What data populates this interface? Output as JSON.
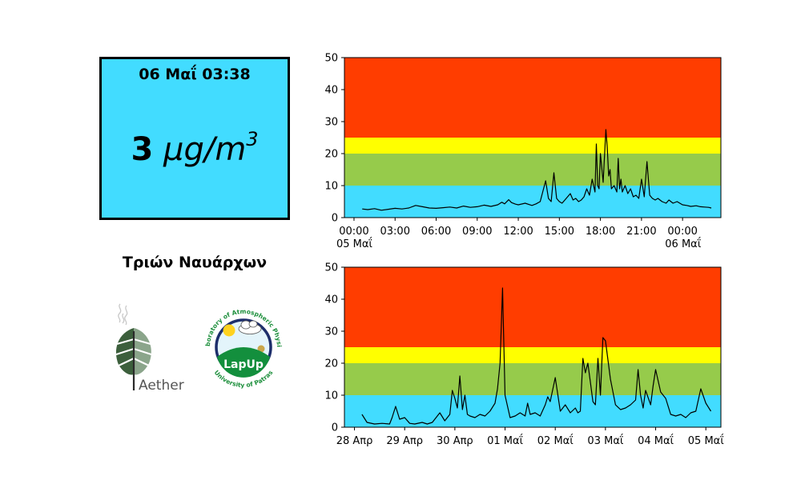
{
  "reading": {
    "time": "06 Μαΐ 03:38",
    "value": "3",
    "unit_base": "μg/m",
    "unit_exp": "3",
    "background": "#42dcff"
  },
  "station": {
    "name": "Τριών Ναυάρχων"
  },
  "logos": {
    "aether": {
      "name": "aether-logo",
      "text": "Aether"
    },
    "lapup": {
      "name": "lapup-logo",
      "badge": "LapUp",
      "ring_top": "Laboratory of Atmospheric Physics",
      "ring_bottom": "University of Patras"
    }
  },
  "colors": {
    "band_good": "#42dcff",
    "band_fair": "#96cb4b",
    "band_moderate": "#ffff00",
    "band_poor": "#ff3d00",
    "line": "#000000"
  },
  "chart_data": [
    {
      "type": "line",
      "ylim": [
        0,
        50
      ],
      "yticks": [
        0,
        10,
        20,
        30,
        40,
        50
      ],
      "bands": [
        {
          "from": 0,
          "to": 10,
          "color": "#42dcff"
        },
        {
          "from": 10,
          "to": 20,
          "color": "#96cb4b"
        },
        {
          "from": 20,
          "to": 25,
          "color": "#ffff00"
        },
        {
          "from": 25,
          "to": 50,
          "color": "#ff3d00"
        }
      ],
      "xlim": [
        -0.7,
        26.8
      ],
      "xticks": [
        {
          "at": 0,
          "label": "00:00",
          "sub": "05 Μαΐ"
        },
        {
          "at": 3,
          "label": "03:00"
        },
        {
          "at": 6,
          "label": "06:00"
        },
        {
          "at": 9,
          "label": "09:00"
        },
        {
          "at": 12,
          "label": "12:00"
        },
        {
          "at": 15,
          "label": "15:00"
        },
        {
          "at": 18,
          "label": "18:00"
        },
        {
          "at": 21,
          "label": "21:00"
        },
        {
          "at": 24,
          "label": "00:00",
          "sub": "06 Μαΐ"
        }
      ],
      "x": [
        0.6,
        1.0,
        1.5,
        2.0,
        2.5,
        3.0,
        3.5,
        4.0,
        4.5,
        5.0,
        5.5,
        6.0,
        6.5,
        7.0,
        7.5,
        8.0,
        8.5,
        9.0,
        9.5,
        10.0,
        10.5,
        10.8,
        11.0,
        11.3,
        11.5,
        11.8,
        12.0,
        12.5,
        13.0,
        13.3,
        13.6,
        14.0,
        14.2,
        14.4,
        14.6,
        14.8,
        15.0,
        15.2,
        15.5,
        15.8,
        16.0,
        16.2,
        16.4,
        16.6,
        16.8,
        17.0,
        17.2,
        17.4,
        17.6,
        17.7,
        17.8,
        17.9,
        18.0,
        18.2,
        18.4,
        18.5,
        18.6,
        18.7,
        18.8,
        19.0,
        19.2,
        19.3,
        19.4,
        19.5,
        19.6,
        19.8,
        20.0,
        20.2,
        20.4,
        20.6,
        20.8,
        21.0,
        21.2,
        21.4,
        21.6,
        21.8,
        22.0,
        22.2,
        22.5,
        22.8,
        23.0,
        23.3,
        23.6,
        24.0,
        24.3,
        24.6,
        25.0,
        25.3,
        25.6,
        25.9,
        26.1
      ],
      "y": [
        2.7,
        2.5,
        2.8,
        2.3,
        2.6,
        2.9,
        2.7,
        3.0,
        3.8,
        3.4,
        3.0,
        2.9,
        3.1,
        3.3,
        3.0,
        3.6,
        3.2,
        3.4,
        3.9,
        3.5,
        4.0,
        4.8,
        4.3,
        5.6,
        4.7,
        4.2,
        4.0,
        4.5,
        3.8,
        4.3,
        5.0,
        11.5,
        6.0,
        5.0,
        14.0,
        6.0,
        5.0,
        4.5,
        6.0,
        7.5,
        5.5,
        6.0,
        5.0,
        5.5,
        6.5,
        9.0,
        7.0,
        12.0,
        8.0,
        23.0,
        10.0,
        9.0,
        20.0,
        11.0,
        27.5,
        22.0,
        13.0,
        15.0,
        9.0,
        10.0,
        8.0,
        18.5,
        9.0,
        12.0,
        8.0,
        10.0,
        7.5,
        9.0,
        6.5,
        7.0,
        6.0,
        12.0,
        6.5,
        17.5,
        7.0,
        6.0,
        5.5,
        6.0,
        5.0,
        4.5,
        5.5,
        4.5,
        5.0,
        4.0,
        3.8,
        3.5,
        3.7,
        3.4,
        3.3,
        3.2,
        3.0
      ]
    },
    {
      "type": "line",
      "ylim": [
        0,
        50
      ],
      "yticks": [
        0,
        10,
        20,
        30,
        40,
        50
      ],
      "bands": [
        {
          "from": 0,
          "to": 10,
          "color": "#42dcff"
        },
        {
          "from": 10,
          "to": 20,
          "color": "#96cb4b"
        },
        {
          "from": 20,
          "to": 25,
          "color": "#ffff00"
        },
        {
          "from": 25,
          "to": 50,
          "color": "#ff3d00"
        }
      ],
      "xlim": [
        -0.2,
        7.3
      ],
      "xticks": [
        {
          "at": 0,
          "label": "28 Απρ"
        },
        {
          "at": 1,
          "label": "29 Απρ"
        },
        {
          "at": 2,
          "label": "30 Απρ"
        },
        {
          "at": 3,
          "label": "01 Μαΐ"
        },
        {
          "at": 4,
          "label": "02 Μαΐ"
        },
        {
          "at": 5,
          "label": "03 Μαΐ"
        },
        {
          "at": 6,
          "label": "04 Μαΐ"
        },
        {
          "at": 7,
          "label": "05 Μαΐ"
        }
      ],
      "x": [
        0.15,
        0.25,
        0.4,
        0.55,
        0.7,
        0.75,
        0.82,
        0.9,
        1.0,
        1.1,
        1.2,
        1.35,
        1.45,
        1.55,
        1.7,
        1.8,
        1.9,
        1.95,
        2.0,
        2.05,
        2.1,
        2.15,
        2.2,
        2.25,
        2.3,
        2.4,
        2.5,
        2.6,
        2.7,
        2.8,
        2.85,
        2.9,
        2.95,
        3.0,
        3.1,
        3.2,
        3.3,
        3.4,
        3.45,
        3.5,
        3.6,
        3.7,
        3.8,
        3.85,
        3.9,
        4.0,
        4.1,
        4.2,
        4.3,
        4.4,
        4.45,
        4.5,
        4.55,
        4.6,
        4.65,
        4.7,
        4.75,
        4.8,
        4.85,
        4.9,
        4.95,
        5.0,
        5.1,
        5.2,
        5.3,
        5.4,
        5.5,
        5.6,
        5.65,
        5.7,
        5.75,
        5.8,
        5.9,
        5.95,
        6.0,
        6.1,
        6.2,
        6.3,
        6.4,
        6.5,
        6.6,
        6.7,
        6.8,
        6.9,
        7.0,
        7.1
      ],
      "y": [
        4.0,
        1.5,
        1.0,
        1.2,
        1.0,
        3.0,
        6.5,
        2.5,
        3.0,
        1.2,
        1.0,
        1.5,
        1.0,
        1.5,
        4.5,
        2.0,
        4.0,
        11.5,
        9.0,
        6.0,
        16.0,
        5.5,
        10.0,
        4.0,
        3.5,
        3.0,
        4.0,
        3.5,
        5.0,
        7.5,
        12.0,
        20.0,
        43.5,
        10.0,
        3.0,
        3.5,
        4.5,
        3.5,
        7.5,
        4.0,
        4.5,
        3.5,
        7.0,
        9.5,
        8.0,
        15.5,
        5.0,
        7.0,
        4.5,
        6.0,
        4.5,
        5.0,
        21.5,
        17.0,
        20.0,
        14.0,
        8.0,
        7.0,
        21.5,
        10.0,
        28.0,
        27.0,
        15.0,
        7.0,
        5.5,
        6.0,
        7.0,
        8.5,
        18.0,
        10.0,
        6.0,
        11.5,
        7.0,
        13.0,
        18.0,
        11.0,
        9.0,
        4.0,
        3.5,
        4.0,
        3.0,
        4.5,
        5.0,
        12.0,
        7.5,
        5.0
      ]
    }
  ]
}
